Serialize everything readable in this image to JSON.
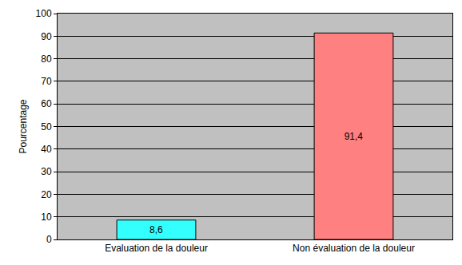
{
  "chart_data": {
    "type": "bar",
    "y_label": "Pourcentage",
    "categories": [
      "Evaluation de la douleur",
      "Non évaluation de la douleur"
    ],
    "values": [
      8.6,
      91.4
    ],
    "value_labels": [
      "8,6",
      "91,4"
    ],
    "colors": [
      "#33FFFF",
      "#FF8080"
    ],
    "ylim": [
      0,
      100
    ],
    "yticks": [
      0,
      10,
      20,
      30,
      40,
      50,
      60,
      70,
      80,
      90,
      100
    ],
    "grid": true,
    "data_labels": true
  }
}
